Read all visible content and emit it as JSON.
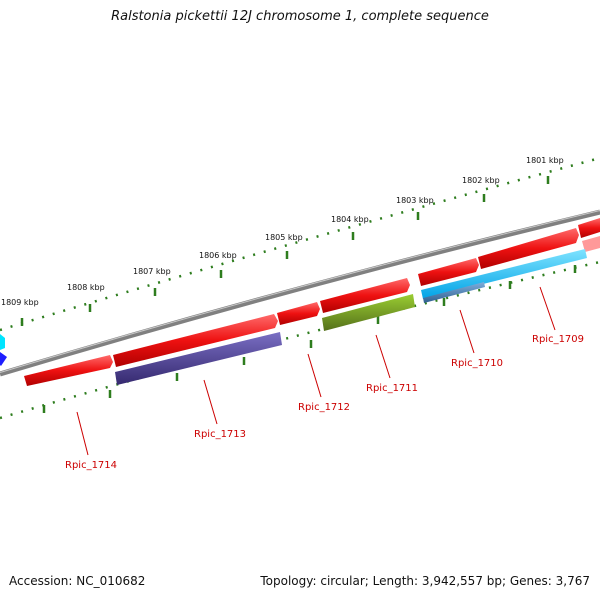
{
  "title": "Ralstonia pickettii 12J chromosome 1, complete sequence",
  "footer": {
    "accession": "Accession: NC_010682",
    "summary": "Topology: circular; Length: 3,942,557 bp; Genes: 3,767"
  },
  "scale_labels": [
    "1801 kbp",
    "1802 kbp",
    "1803 kbp",
    "1804 kbp",
    "1805 kbp",
    "1806 kbp",
    "1807 kbp",
    "1808 kbp",
    "1809 kbp"
  ],
  "gene_labels": [
    "Rpic_1709",
    "Rpic_1710",
    "Rpic_1711",
    "Rpic_1712",
    "Rpic_1713",
    "Rpic_1714"
  ],
  "colors": {
    "forward_gene": "#ee1111",
    "forward_gene_light": "#ff9999",
    "reverse_gene_olive": "#6b8e23",
    "reverse_gene_indigo": "#483d8b",
    "reverse_gene_cyan": "#00bfff",
    "reverse_gene_steel": "#4682b4",
    "backbone": "#808080",
    "tick": "#2e7d1e",
    "label": "#cc0000"
  }
}
